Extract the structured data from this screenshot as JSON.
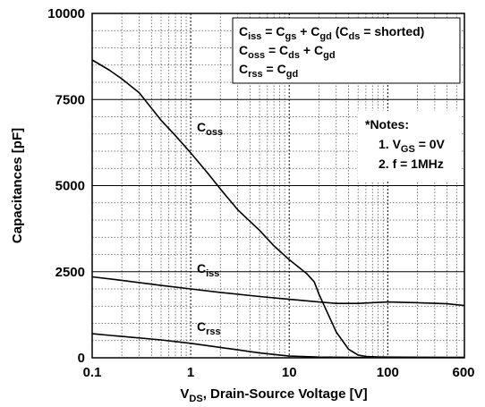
{
  "chart_data": {
    "type": "line",
    "title": "",
    "xlabel": {
      "main": "V",
      "sub": "DS",
      "rest": ", Drain-Source Voltage [V]"
    },
    "ylabel": "Capacitances [pF]",
    "xscale": "log",
    "xlim": [
      0.1,
      600
    ],
    "ylim": [
      0,
      10000
    ],
    "grid": true,
    "x_ticks": [
      {
        "value": 0.1,
        "label": "0.1"
      },
      {
        "value": 1,
        "label": "1"
      },
      {
        "value": 10,
        "label": "10"
      },
      {
        "value": 100,
        "label": "100"
      },
      {
        "value": 600,
        "label": "600"
      }
    ],
    "y_ticks": [
      {
        "value": 0,
        "label": "0"
      },
      {
        "value": 2500,
        "label": "2500"
      },
      {
        "value": 5000,
        "label": "5000"
      },
      {
        "value": 7500,
        "label": "7500"
      },
      {
        "value": 10000,
        "label": "10000"
      }
    ],
    "series": [
      {
        "name": "Coss",
        "label": {
          "main": "C",
          "sub": "oss"
        },
        "x": [
          0.1,
          0.15,
          0.2,
          0.3,
          0.5,
          0.7,
          1,
          1.5,
          2,
          3,
          5,
          7,
          10,
          15,
          18,
          20,
          25,
          30,
          40,
          50,
          60,
          80,
          100,
          200,
          400,
          600
        ],
        "y": [
          8650,
          8350,
          8100,
          7700,
          6900,
          6450,
          5950,
          5350,
          4900,
          4300,
          3700,
          3250,
          2850,
          2450,
          2200,
          1850,
          1250,
          750,
          250,
          80,
          40,
          25,
          20,
          15,
          12,
          10
        ]
      },
      {
        "name": "Ciss",
        "label": {
          "main": "C",
          "sub": "iss"
        },
        "x": [
          0.1,
          0.2,
          0.5,
          1,
          2,
          5,
          10,
          20,
          30,
          50,
          100,
          200,
          400,
          600
        ],
        "y": [
          2350,
          2250,
          2100,
          2000,
          1900,
          1780,
          1700,
          1620,
          1580,
          1580,
          1620,
          1600,
          1570,
          1520
        ]
      },
      {
        "name": "Crss",
        "label": {
          "main": "C",
          "sub": "rss"
        },
        "x": [
          0.1,
          0.2,
          0.5,
          1,
          2,
          5,
          10,
          20,
          50,
          100,
          600
        ],
        "y": [
          700,
          620,
          520,
          420,
          300,
          140,
          50,
          20,
          12,
          10,
          8
        ]
      }
    ],
    "legend": {
      "placement": "top-right",
      "lines": [
        [
          {
            "t": "C"
          },
          {
            "t": "iss",
            "sub": true
          },
          {
            "t": " = C"
          },
          {
            "t": "gs",
            "sub": true
          },
          {
            "t": " + C"
          },
          {
            "t": "gd",
            "sub": true
          },
          {
            "t": "  (C"
          },
          {
            "t": "ds",
            "sub": true
          },
          {
            "t": " = shorted)"
          }
        ],
        [
          {
            "t": "C"
          },
          {
            "t": "oss",
            "sub": true
          },
          {
            "t": " = C"
          },
          {
            "t": "ds",
            "sub": true
          },
          {
            "t": " + C"
          },
          {
            "t": "gd",
            "sub": true
          }
        ],
        [
          {
            "t": "C"
          },
          {
            "t": "rss",
            "sub": true
          },
          {
            "t": " = C"
          },
          {
            "t": "gd",
            "sub": true
          }
        ]
      ]
    },
    "notes": {
      "lines": [
        [
          {
            "t": "*Notes:"
          }
        ],
        [
          {
            "t": "1. V"
          },
          {
            "t": "GS",
            "sub": true
          },
          {
            "t": " = 0V"
          }
        ],
        [
          {
            "t": "2. f = 1MHz"
          }
        ]
      ]
    }
  },
  "colors": {
    "line": "#000000",
    "grid_major": "#000000",
    "grid_minor": "#555555",
    "background": "#ffffff"
  }
}
